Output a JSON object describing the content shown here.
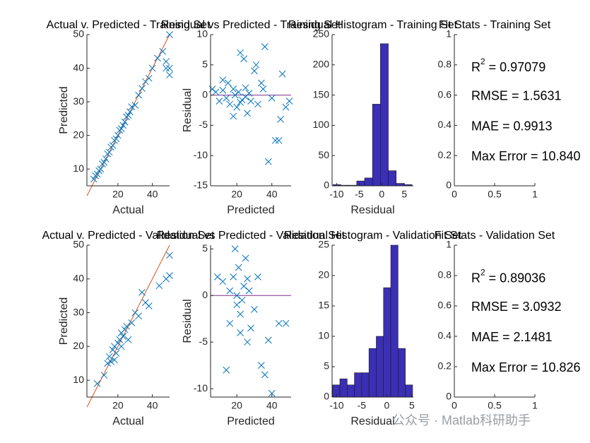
{
  "chart_data": [
    {
      "type": "scatter",
      "title": "Actual v. Predicted - Training Set",
      "xlabel": "Actual",
      "ylabel": "Predicted",
      "xlim": [
        2,
        50
      ],
      "ylim": [
        5,
        50
      ],
      "xticks": [
        20,
        40
      ],
      "yticks": [
        10,
        20,
        30,
        40,
        50
      ],
      "color": "#0072BD",
      "ref_x": [
        2,
        50
      ],
      "ref_y": [
        2,
        50
      ],
      "ref_color": "#D95319",
      "x": [
        6,
        7,
        8,
        9,
        10,
        11,
        12,
        13,
        14,
        15,
        16,
        17,
        18,
        19,
        20,
        21,
        22,
        23,
        24,
        25,
        26,
        27,
        28,
        30,
        32,
        34,
        36,
        38,
        40,
        43,
        46,
        48,
        50,
        50,
        50,
        48
      ],
      "y": [
        7,
        8,
        8.5,
        9.5,
        10,
        11.5,
        12,
        13,
        14.5,
        15,
        16.5,
        17,
        18.5,
        19,
        20,
        21.5,
        22,
        23,
        24,
        25.5,
        26,
        27,
        28.5,
        29,
        32,
        34,
        36,
        37,
        40,
        43,
        45,
        40,
        50,
        38,
        40,
        42
      ]
    },
    {
      "type": "scatter",
      "title": "Residual vs Predicted - Training Set",
      "xlabel": "Predicted",
      "ylabel": "Residual",
      "xlim": [
        5,
        51
      ],
      "ylim": [
        -15,
        10
      ],
      "xticks": [
        20,
        40
      ],
      "yticks": [
        -15,
        -10,
        -5,
        0,
        5,
        10
      ],
      "color": "#0072BD",
      "ref_x": [
        5,
        51
      ],
      "ref_y": [
        0,
        0
      ],
      "ref_color": "#7E2F8E",
      "x": [
        6,
        8,
        10,
        12,
        14,
        15,
        16,
        18,
        19,
        20,
        21,
        22,
        23,
        24,
        25,
        26,
        27,
        28,
        30,
        32,
        34,
        36,
        38,
        40,
        42,
        44,
        46,
        48,
        50,
        12,
        18,
        25,
        31,
        35,
        22,
        45
      ],
      "y": [
        1,
        0.5,
        -1,
        0.8,
        -0.5,
        2,
        -1.5,
        1,
        0,
        -2,
        0.5,
        7,
        -0.8,
        6,
        1.2,
        -3,
        0.3,
        -1,
        4,
        -1.5,
        2,
        8,
        -11,
        -0.5,
        -7.5,
        -7.5,
        3.5,
        -2,
        -1,
        2.5,
        -3.5,
        -0.3,
        5,
        1,
        -1.2,
        -4
      ]
    },
    {
      "type": "histogram",
      "title": "Residual Histogram - Training Set",
      "xlabel": "Residual",
      "xlim": [
        -11,
        7
      ],
      "ylim": [
        0,
        250
      ],
      "xticks": [
        -10,
        -5,
        0,
        5
      ],
      "yticks": [
        0,
        50,
        100,
        150,
        200,
        250
      ],
      "color": "#3b2fb5",
      "bins": [
        -10.8,
        -9.05,
        -7.3,
        -5.55,
        -3.8,
        -2.05,
        -0.3,
        1.45,
        3.2,
        4.95,
        6.7
      ],
      "counts": [
        2,
        1,
        1,
        8,
        13,
        135,
        235,
        25,
        4,
        2
      ]
    },
    {
      "type": "stats",
      "title": "Fit Stats - Training Set",
      "xlim": [
        0,
        1
      ],
      "ylim": [
        0,
        1
      ],
      "xticks": [
        0,
        0.5,
        1
      ],
      "yticks": [
        0,
        0.2,
        0.4,
        0.6,
        0.8,
        1
      ],
      "r2": {
        "base": "R",
        "sup": "2",
        "rest": " = 0.97079"
      },
      "lines": [
        "RMSE = 1.5631",
        "MAE = 0.9913",
        "Max Error = 10.840"
      ]
    },
    {
      "type": "scatter",
      "title": "Actual v. Predicted - Validation Set",
      "xlabel": "Actual",
      "ylabel": "Predicted",
      "xlim": [
        2,
        50
      ],
      "ylim": [
        5,
        50
      ],
      "xticks": [
        20,
        40
      ],
      "yticks": [
        10,
        20,
        30,
        40,
        50
      ],
      "color": "#0072BD",
      "ref_x": [
        2,
        50
      ],
      "ref_y": [
        2,
        50
      ],
      "ref_color": "#D95319",
      "x": [
        8,
        12,
        14,
        15,
        16,
        17,
        18,
        19,
        20,
        21,
        22,
        22,
        23,
        24,
        25,
        26,
        28,
        30,
        32,
        34,
        36,
        38,
        44,
        48,
        50,
        50,
        18
      ],
      "y": [
        9,
        11.5,
        15,
        17,
        15.5,
        19,
        20,
        18,
        21,
        22,
        20,
        24,
        23,
        25,
        26,
        22,
        27,
        30,
        29,
        36,
        33,
        32,
        38,
        40,
        41,
        47,
        16
      ]
    },
    {
      "type": "scatter",
      "title": "Residual vs Predicted - Validation Set",
      "xlabel": "Predicted",
      "ylabel": "Residual",
      "xlim": [
        5,
        51
      ],
      "ylim": [
        -10.9,
        5.4
      ],
      "xticks": [
        20,
        40
      ],
      "yticks": [
        -10,
        -5,
        0,
        5
      ],
      "color": "#0072BD",
      "ref_x": [
        5,
        51
      ],
      "ref_y": [
        0,
        0
      ],
      "ref_color": "#7E2F8E",
      "x": [
        9,
        12,
        14,
        16,
        18,
        19,
        20,
        20,
        21,
        22,
        23,
        24,
        25,
        26,
        27,
        28,
        30,
        32,
        34,
        36,
        38,
        40,
        44,
        48,
        16,
        22,
        26
      ],
      "y": [
        2,
        1.5,
        -8,
        -3,
        2,
        5,
        0,
        -1,
        3,
        -2,
        -0.5,
        1,
        4,
        -5,
        0.5,
        -3.5,
        -1.5,
        2,
        -7.5,
        -8.5,
        -4.8,
        -10.5,
        -3,
        -3,
        0.5,
        -4,
        1.8
      ]
    },
    {
      "type": "histogram",
      "title": "Residual Histogram - Validation Set",
      "xlabel": "Residual",
      "xlim": [
        -10.9,
        5.3
      ],
      "ylim": [
        0,
        25
      ],
      "xticks": [
        -10,
        -5,
        0,
        5
      ],
      "yticks": [
        0,
        5,
        10,
        15,
        20,
        25
      ],
      "color": "#3b2fb5",
      "bins": [
        -10.8,
        -9.35,
        -7.9,
        -6.45,
        -5.0,
        -3.55,
        -2.1,
        -0.65,
        0.8,
        2.25,
        3.7,
        5.15
      ],
      "counts": [
        2,
        3,
        2,
        4,
        4,
        8,
        10,
        18,
        25,
        8,
        2
      ]
    },
    {
      "type": "stats",
      "title": "Fit Stats - Validation Set",
      "xlim": [
        0,
        1
      ],
      "ylim": [
        0,
        1
      ],
      "xticks": [
        0,
        0.5,
        1
      ],
      "yticks": [
        0,
        0.2,
        0.4,
        0.6,
        0.8,
        1
      ],
      "r2": {
        "base": "R",
        "sup": "2",
        "rest": " = 0.89036"
      },
      "lines": [
        "RMSE = 3.0932",
        "MAE = 2.1481",
        "Max Error = 10.826"
      ]
    }
  ],
  "watermark": "公众号 · Matlab科研助手"
}
